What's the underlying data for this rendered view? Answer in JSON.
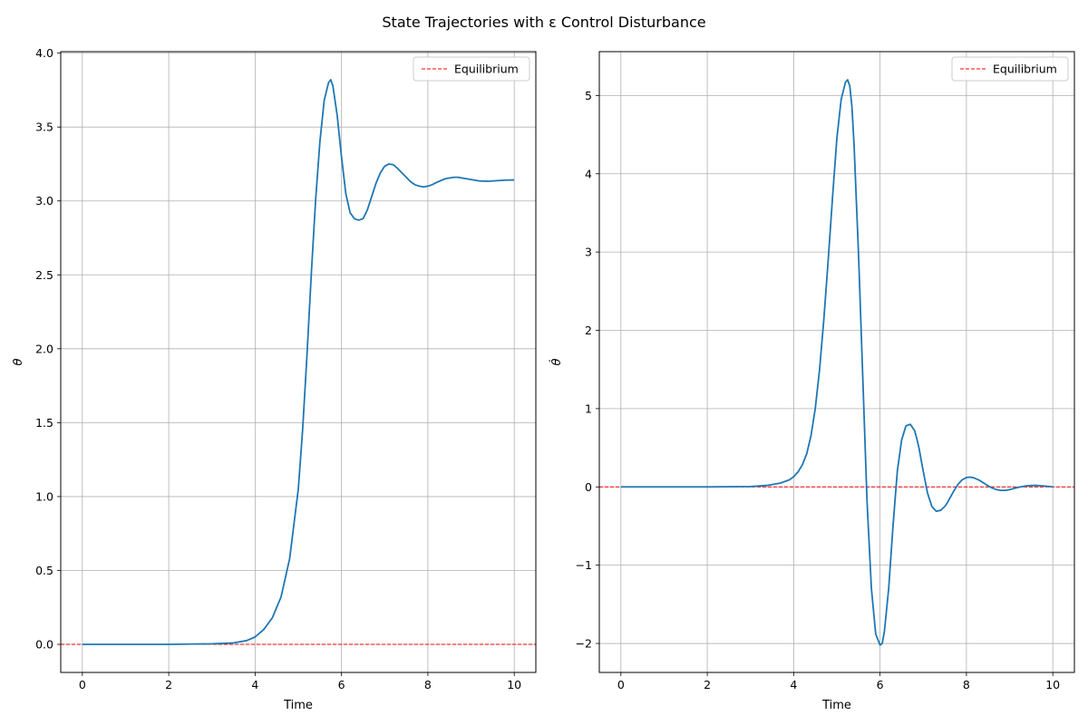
{
  "figure": {
    "title": "State Trajectories with ε Control Disturbance"
  },
  "chart_data": [
    {
      "type": "line",
      "xlabel": "Time",
      "ylabel": "θ",
      "xlim": [
        -0.5,
        10.5
      ],
      "ylim": [
        -0.19,
        4.01
      ],
      "xticks": [
        0,
        2,
        4,
        6,
        8,
        10
      ],
      "xtick_labels": [
        "0",
        "2",
        "4",
        "6",
        "8",
        "10"
      ],
      "yticks": [
        0.0,
        0.5,
        1.0,
        1.5,
        2.0,
        2.5,
        3.0,
        3.5,
        4.0
      ],
      "ytick_labels": [
        "0.0",
        "0.5",
        "1.0",
        "1.5",
        "2.0",
        "2.5",
        "3.0",
        "3.5",
        "4.0"
      ],
      "grid": true,
      "legend": {
        "placement": "top-right",
        "entries": [
          "Equilibrium"
        ]
      },
      "hline": {
        "y": 0,
        "label": "Equilibrium",
        "color": "#ff0000",
        "style": "dashed"
      },
      "series": [
        {
          "color": "#1f77b4",
          "x": [
            0,
            1,
            2,
            3,
            3.5,
            3.8,
            4.0,
            4.2,
            4.4,
            4.6,
            4.8,
            5.0,
            5.1,
            5.2,
            5.3,
            5.4,
            5.5,
            5.6,
            5.7,
            5.75,
            5.8,
            5.9,
            6.0,
            6.1,
            6.2,
            6.3,
            6.4,
            6.5,
            6.6,
            6.7,
            6.8,
            6.9,
            7.0,
            7.1,
            7.2,
            7.3,
            7.4,
            7.5,
            7.6,
            7.7,
            7.8,
            7.9,
            8.0,
            8.1,
            8.2,
            8.4,
            8.6,
            8.7,
            8.8,
            9.0,
            9.2,
            9.4,
            9.6,
            9.8,
            10.0
          ],
          "values": [
            0.0,
            0.0,
            0.0,
            0.004,
            0.01,
            0.025,
            0.05,
            0.1,
            0.18,
            0.32,
            0.58,
            1.05,
            1.45,
            1.95,
            2.5,
            3.0,
            3.4,
            3.68,
            3.8,
            3.82,
            3.78,
            3.58,
            3.3,
            3.05,
            2.92,
            2.88,
            2.87,
            2.88,
            2.94,
            3.03,
            3.12,
            3.19,
            3.235,
            3.25,
            3.245,
            3.22,
            3.19,
            3.16,
            3.13,
            3.11,
            3.1,
            3.095,
            3.1,
            3.11,
            3.125,
            3.15,
            3.16,
            3.16,
            3.155,
            3.145,
            3.135,
            3.133,
            3.137,
            3.141,
            3.142
          ]
        }
      ]
    },
    {
      "type": "line",
      "xlabel": "Time",
      "ylabel": "θ̇",
      "xlim": [
        -0.5,
        10.5
      ],
      "ylim": [
        -2.37,
        5.56
      ],
      "xticks": [
        0,
        2,
        4,
        6,
        8,
        10
      ],
      "xtick_labels": [
        "0",
        "2",
        "4",
        "6",
        "8",
        "10"
      ],
      "yticks": [
        -2,
        -1,
        0,
        1,
        2,
        3,
        4,
        5
      ],
      "ytick_labels": [
        "−2",
        "−1",
        "0",
        "1",
        "2",
        "3",
        "4",
        "5"
      ],
      "grid": true,
      "legend": {
        "placement": "top-right",
        "entries": [
          "Equilibrium"
        ]
      },
      "hline": {
        "y": 0,
        "label": "Equilibrium",
        "color": "#ff0000",
        "style": "dashed"
      },
      "series": [
        {
          "color": "#1f77b4",
          "x": [
            0,
            1,
            2,
            3,
            3.4,
            3.7,
            3.9,
            4.0,
            4.1,
            4.2,
            4.3,
            4.4,
            4.5,
            4.6,
            4.7,
            4.8,
            4.9,
            5.0,
            5.1,
            5.2,
            5.25,
            5.3,
            5.35,
            5.4,
            5.5,
            5.6,
            5.7,
            5.8,
            5.9,
            6.0,
            6.05,
            6.1,
            6.2,
            6.3,
            6.4,
            6.5,
            6.6,
            6.7,
            6.8,
            6.85,
            6.9,
            7.0,
            7.1,
            7.2,
            7.3,
            7.4,
            7.5,
            7.55,
            7.6,
            7.7,
            7.8,
            7.9,
            8.0,
            8.1,
            8.2,
            8.3,
            8.4,
            8.5,
            8.6,
            8.7,
            8.8,
            8.9,
            9.0,
            9.1,
            9.2,
            9.4,
            9.6,
            9.8,
            10.0
          ],
          "values": [
            0.0,
            0.0,
            0.0,
            0.005,
            0.02,
            0.05,
            0.09,
            0.13,
            0.19,
            0.28,
            0.42,
            0.65,
            1.0,
            1.5,
            2.15,
            2.9,
            3.7,
            4.45,
            4.95,
            5.17,
            5.2,
            5.12,
            4.85,
            4.35,
            3.0,
            1.4,
            -0.2,
            -1.3,
            -1.88,
            -2.02,
            -2.0,
            -1.85,
            -1.3,
            -0.5,
            0.2,
            0.6,
            0.78,
            0.8,
            0.72,
            0.62,
            0.5,
            0.2,
            -0.08,
            -0.25,
            -0.31,
            -0.3,
            -0.25,
            -0.21,
            -0.16,
            -0.06,
            0.03,
            0.09,
            0.12,
            0.125,
            0.11,
            0.085,
            0.05,
            0.015,
            -0.015,
            -0.035,
            -0.045,
            -0.045,
            -0.035,
            -0.02,
            -0.005,
            0.015,
            0.02,
            0.012,
            0.0
          ]
        }
      ]
    }
  ]
}
